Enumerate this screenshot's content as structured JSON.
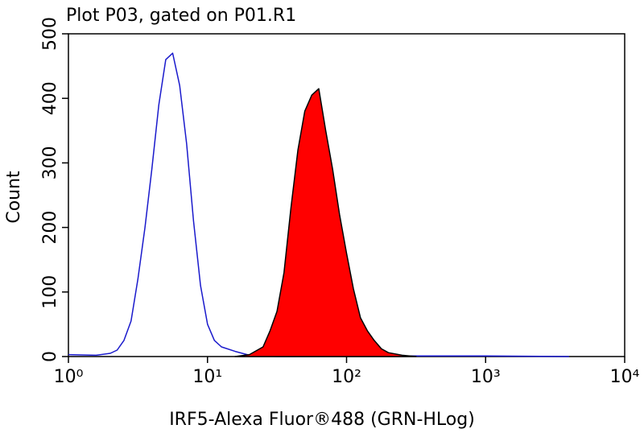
{
  "chart_data": {
    "type": "histogram-overlay",
    "title": "Plot P03, gated on P01.R1",
    "x_label": "IRF5-Alexa Fluor®488 (GRN-HLog)",
    "y_label": "Count",
    "xscale": "log",
    "xlim": [
      1,
      10000
    ],
    "xticks": [
      {
        "value": 1,
        "label": "10⁰"
      },
      {
        "value": 10,
        "label": "10¹"
      },
      {
        "value": 100,
        "label": "10²"
      },
      {
        "value": 1000,
        "label": "10³"
      },
      {
        "value": 10000,
        "label": "10⁴"
      }
    ],
    "ylim": [
      0,
      500
    ],
    "yticks": [
      0,
      100,
      200,
      300,
      400,
      500
    ],
    "series": [
      {
        "color": "#1a1acc",
        "filled": false,
        "x": [
          1,
          1.58,
          2,
          2.24,
          2.51,
          2.82,
          3.16,
          3.55,
          3.98,
          4.47,
          5.01,
          5.62,
          6.31,
          7.08,
          7.94,
          8.91,
          10,
          11.2,
          12.6,
          15.8,
          20,
          31.6,
          316,
          1000,
          3981
        ],
        "values": [
          3,
          2,
          5,
          10,
          25,
          55,
          120,
          200,
          290,
          390,
          460,
          470,
          420,
          330,
          210,
          110,
          50,
          25,
          15,
          8,
          2,
          0,
          1,
          1,
          0
        ]
      },
      {
        "color": "#ff0000",
        "filled": true,
        "x": [
          15.8,
          20,
          25.1,
          28.2,
          31.6,
          35.5,
          39.8,
          44.7,
          50.1,
          56.2,
          63.1,
          70.8,
          79.4,
          89.1,
          100,
          112,
          126,
          141,
          158,
          178,
          200,
          251,
          316
        ],
        "values": [
          0,
          3,
          15,
          40,
          70,
          130,
          230,
          320,
          380,
          405,
          415,
          350,
          290,
          220,
          160,
          105,
          60,
          40,
          25,
          12,
          6,
          2,
          0
        ]
      }
    ]
  }
}
